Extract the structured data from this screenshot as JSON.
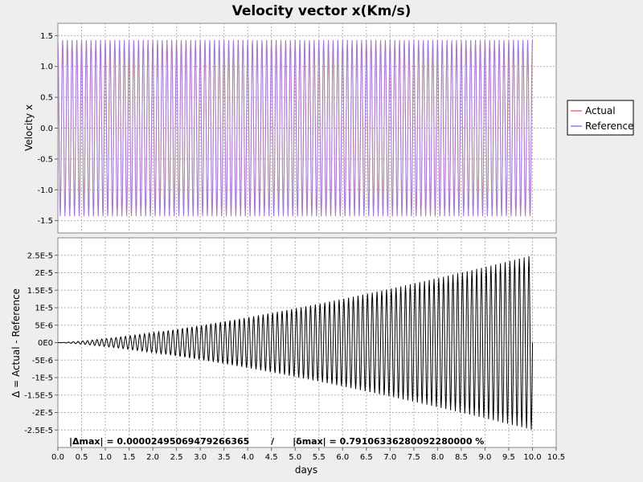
{
  "chart_data": [
    {
      "type": "line",
      "title": "Velocity vector x(Km/s)",
      "ylabel": "Velocity x",
      "xlim": [
        0,
        10.5
      ],
      "ylim": [
        -1.7,
        1.7
      ],
      "yticks": [
        1.5,
        1.0,
        0.5,
        0.0,
        -0.5,
        -1.0,
        -1.5
      ],
      "ytick_labels": [
        "1.5",
        "1.0",
        "0.5",
        "0.0",
        "-0.5",
        "-1.0",
        "-1.5"
      ],
      "grid": true,
      "legend_position": "right",
      "series": [
        {
          "name": "Actual",
          "color": "#ff6666",
          "amplitude": 1.43,
          "period_days": 0.1,
          "x_range": [
            0,
            10
          ]
        },
        {
          "name": "Reference",
          "color": "#8080ff",
          "amplitude": 1.43,
          "period_days": 0.1,
          "x_range": [
            0,
            10
          ]
        }
      ]
    },
    {
      "type": "line",
      "ylabel": "Δ = Actual - Reference",
      "xlabel": "days",
      "xlim": [
        0,
        10.5
      ],
      "ylim": [
        -3e-05,
        3e-05
      ],
      "xticks": [
        0,
        0.5,
        1,
        1.5,
        2,
        2.5,
        3,
        3.5,
        4,
        4.5,
        5,
        5.5,
        6,
        6.5,
        7,
        7.5,
        8,
        8.5,
        9,
        9.5,
        10,
        10.5
      ],
      "xtick_labels": [
        "0.0",
        "0.5",
        "1.0",
        "1.5",
        "2.0",
        "2.5",
        "3.0",
        "3.5",
        "4.0",
        "4.5",
        "5.0",
        "5.5",
        "6.0",
        "6.5",
        "7.0",
        "7.5",
        "8.0",
        "8.5",
        "9.0",
        "9.5",
        "10.0",
        "10.5"
      ],
      "yticks": [
        2.5e-05,
        2e-05,
        1.5e-05,
        1e-05,
        5e-06,
        0,
        -5e-06,
        -1e-05,
        -1.5e-05,
        -2e-05,
        -2.5e-05
      ],
      "ytick_labels": [
        "2.5E-5",
        "2E-5",
        "1.5E-5",
        "1E-5",
        "5E-6",
        "0E0",
        "-5E-6",
        "-1E-5",
        "-1.5E-5",
        "-2E-5",
        "-2.5E-5"
      ],
      "grid": true,
      "series": [
        {
          "name": "Δ",
          "color": "#000000",
          "max_abs": 2.495069479266365e-05,
          "period_days": 0.1,
          "x_range": [
            0,
            10
          ]
        }
      ],
      "annotation": "|Δmax| = 0.00002495069479266365       /      |δmax| = 0.79106336280092280000 %"
    }
  ]
}
